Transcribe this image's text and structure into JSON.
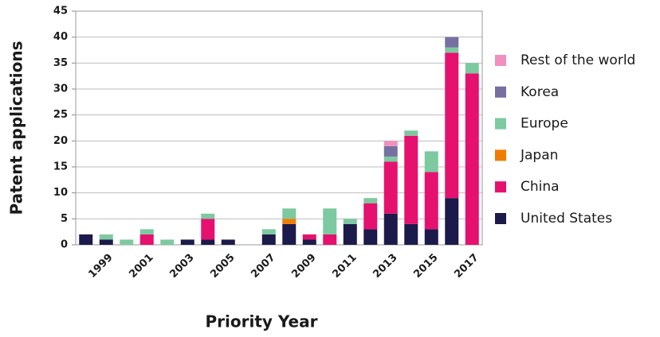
{
  "chart_data": {
    "type": "stacked_bar",
    "y_label": "Patent applications",
    "x_label": "Priority Year",
    "categories": [
      null,
      "1999",
      null,
      "2001",
      null,
      "2003",
      null,
      "2005",
      null,
      "2007",
      null,
      "2009",
      null,
      "2011",
      null,
      "2013",
      null,
      "2015",
      null,
      "2017"
    ],
    "series": [
      {
        "name": "United States",
        "color": "#1c1a4a",
        "values": [
          2,
          1,
          0,
          0,
          0,
          1,
          1,
          1,
          0,
          2,
          4,
          1,
          0,
          4,
          3,
          6,
          4,
          3,
          9,
          0
        ]
      },
      {
        "name": "China",
        "color": "#e6106f",
        "values": [
          0,
          0,
          0,
          2,
          0,
          0,
          4,
          0,
          0,
          0,
          0,
          1,
          2,
          0,
          5,
          10,
          17,
          11,
          28,
          33
        ]
      },
      {
        "name": "Japan",
        "color": "#f07d00",
        "values": [
          0,
          0,
          0,
          0,
          0,
          0,
          0,
          0,
          0,
          0,
          1,
          0,
          0,
          0,
          0,
          0,
          0,
          0,
          0,
          0
        ]
      },
      {
        "name": "Europe",
        "color": "#7dc9a0",
        "values": [
          0,
          1,
          1,
          1,
          1,
          0,
          1,
          0,
          0,
          1,
          2,
          0,
          5,
          1,
          1,
          1,
          1,
          4,
          1,
          2
        ]
      },
      {
        "name": "Korea",
        "color": "#7570a0",
        "values": [
          0,
          0,
          0,
          0,
          0,
          0,
          0,
          0,
          0,
          0,
          0,
          0,
          0,
          0,
          0,
          2,
          0,
          0,
          2,
          0
        ]
      },
      {
        "name": "Rest of the world",
        "color": "#f28fbf",
        "values": [
          0,
          0,
          0,
          0,
          0,
          0,
          0,
          0,
          0,
          0,
          0,
          0,
          0,
          0,
          0,
          1,
          0,
          0,
          0,
          0
        ]
      }
    ],
    "ylim": [
      0,
      45
    ],
    "yticks": [
      0,
      5,
      10,
      15,
      20,
      25,
      30,
      35,
      40,
      45
    ],
    "grid": true
  }
}
